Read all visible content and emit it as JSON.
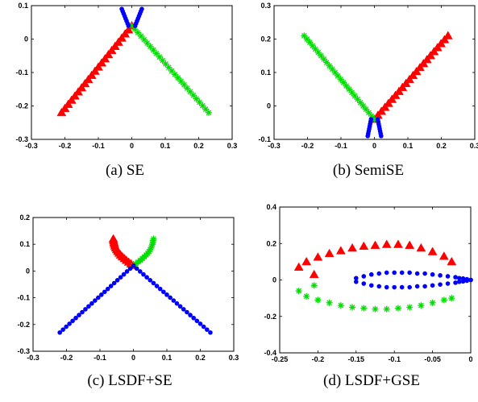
{
  "chart_data": [
    {
      "type": "scatter",
      "caption": "(a) SE",
      "xlim": [
        -0.3,
        0.3
      ],
      "ylim": [
        -0.3,
        0.1
      ],
      "xticks": [
        -0.3,
        -0.2,
        -0.1,
        0,
        0.1,
        0.2,
        0.3
      ],
      "xtick_labels": [
        "-0.3",
        "-0.2",
        "-0.1",
        "0",
        "0.1",
        "0.2",
        "0.3"
      ],
      "yticks": [
        -0.3,
        -0.2,
        -0.1,
        0,
        0.1
      ],
      "ytick_labels": [
        "-0.3",
        "-0.2",
        "-0.1",
        "0",
        "0.1"
      ],
      "series": [
        {
          "marker": "triangle",
          "color": "#ff0000",
          "x": [
            -0.21,
            0.0
          ],
          "y": [
            -0.22,
            0.04
          ],
          "n": 22
        },
        {
          "marker": "asterisk",
          "color": "#00dd00",
          "x": [
            0.0,
            0.23
          ],
          "y": [
            0.04,
            -0.22
          ],
          "n": 26
        },
        {
          "marker": "dot",
          "color": "#0000ff",
          "x": [
            -0.01,
            -0.03
          ],
          "y": [
            0.04,
            0.09
          ],
          "n": 8
        },
        {
          "marker": "dot",
          "color": "#0000ff",
          "x": [
            0.01,
            0.03
          ],
          "y": [
            0.04,
            0.09
          ],
          "n": 8
        }
      ]
    },
    {
      "type": "scatter",
      "caption": "(b) SemiSE",
      "xlim": [
        -0.3,
        0.3
      ],
      "ylim": [
        -0.1,
        0.3
      ],
      "xticks": [
        -0.3,
        -0.2,
        -0.1,
        0,
        0.1,
        0.2,
        0.3
      ],
      "xtick_labels": [
        "-0.3",
        "-0.2",
        "-0.1",
        "0",
        "0.1",
        "0.2",
        "0.3"
      ],
      "yticks": [
        -0.1,
        0,
        0.1,
        0.2,
        0.3
      ],
      "ytick_labels": [
        "-0.1",
        "0",
        "0.1",
        "0.2",
        "0.3"
      ],
      "series": [
        {
          "marker": "triangle",
          "color": "#ff0000",
          "x": [
            0.0,
            0.22
          ],
          "y": [
            -0.04,
            0.21
          ],
          "n": 22
        },
        {
          "marker": "asterisk",
          "color": "#00dd00",
          "x": [
            -0.21,
            0.0
          ],
          "y": [
            0.21,
            -0.04
          ],
          "n": 26
        },
        {
          "marker": "dot",
          "color": "#0000ff",
          "x": [
            -0.01,
            -0.02
          ],
          "y": [
            -0.04,
            -0.09
          ],
          "n": 8
        },
        {
          "marker": "dot",
          "color": "#0000ff",
          "x": [
            0.01,
            0.02
          ],
          "y": [
            -0.04,
            -0.09
          ],
          "n": 8
        }
      ]
    },
    {
      "type": "scatter",
      "caption": "(c) LSDF+SE",
      "xlim": [
        -0.3,
        0.3
      ],
      "ylim": [
        -0.3,
        0.2
      ],
      "xticks": [
        -0.3,
        -0.2,
        -0.1,
        0,
        0.1,
        0.2,
        0.3
      ],
      "xtick_labels": [
        "-0.3",
        "-0.2",
        "-0.1",
        "0",
        "0.1",
        "0.2",
        "0.3"
      ],
      "yticks": [
        -0.3,
        -0.2,
        -0.1,
        0,
        0.1,
        0.2
      ],
      "ytick_labels": [
        "-0.3",
        "-0.2",
        "-0.1",
        "0",
        "0.1",
        "0.2"
      ],
      "series": [
        {
          "marker": "triangle",
          "color": "#ff0000",
          "x": [
            -0.06,
            0.0
          ],
          "y": [
            0.12,
            0.02
          ],
          "n": 16,
          "curve": "left"
        },
        {
          "marker": "asterisk",
          "color": "#00dd00",
          "x": [
            0.0,
            0.06
          ],
          "y": [
            0.02,
            0.12
          ],
          "n": 16,
          "curve": "right"
        },
        {
          "marker": "dot",
          "color": "#0000ff",
          "x": [
            -0.22,
            0.0
          ],
          "y": [
            -0.23,
            0.02
          ],
          "n": 24
        },
        {
          "marker": "dot",
          "color": "#0000ff",
          "x": [
            0.0,
            0.23
          ],
          "y": [
            0.02,
            -0.23
          ],
          "n": 24
        }
      ]
    },
    {
      "type": "scatter",
      "caption": "(d) LSDF+GSE",
      "xlim": [
        -0.25,
        0
      ],
      "ylim": [
        -0.4,
        0.4
      ],
      "xticks": [
        -0.25,
        -0.2,
        -0.15,
        -0.1,
        -0.05,
        0
      ],
      "xtick_labels": [
        "-0.25",
        "-0.2",
        "-0.15",
        "-0.1",
        "-0.05",
        "0"
      ],
      "yticks": [
        -0.4,
        -0.2,
        0,
        0.2,
        0.4
      ],
      "ytick_labels": [
        "-0.4",
        "-0.2",
        "0",
        "0.2",
        "0.4"
      ],
      "series": [
        {
          "marker": "triangle",
          "color": "#ff0000",
          "x": [
            -0.225,
            -0.215,
            -0.2,
            -0.185,
            -0.17,
            -0.155,
            -0.14,
            -0.125,
            -0.11,
            -0.095,
            -0.08,
            -0.065,
            -0.05,
            -0.035,
            -0.025
          ],
          "y": [
            0.07,
            0.1,
            0.125,
            0.145,
            0.16,
            0.175,
            0.185,
            0.19,
            0.195,
            0.195,
            0.19,
            0.175,
            0.155,
            0.13,
            0.1
          ]
        },
        {
          "marker": "triangle",
          "color": "#ff0000",
          "x": [
            -0.205
          ],
          "y": [
            0.03
          ]
        },
        {
          "marker": "asterisk",
          "color": "#00dd00",
          "x": [
            -0.225,
            -0.215,
            -0.2,
            -0.185,
            -0.17,
            -0.155,
            -0.14,
            -0.125,
            -0.11,
            -0.095,
            -0.08,
            -0.065,
            -0.05,
            -0.035,
            -0.025
          ],
          "y": [
            -0.06,
            -0.09,
            -0.11,
            -0.125,
            -0.14,
            -0.15,
            -0.155,
            -0.16,
            -0.16,
            -0.155,
            -0.15,
            -0.14,
            -0.125,
            -0.11,
            -0.1
          ]
        },
        {
          "marker": "asterisk",
          "color": "#00dd00",
          "x": [
            -0.205
          ],
          "y": [
            -0.03
          ]
        },
        {
          "marker": "dot",
          "color": "#0000ff",
          "x": [
            -0.15,
            -0.14,
            -0.13,
            -0.12,
            -0.11,
            -0.1,
            -0.09,
            -0.08,
            -0.07,
            -0.06,
            -0.05,
            -0.04,
            -0.03,
            -0.02,
            -0.015,
            -0.01,
            -0.005,
            0
          ],
          "y": [
            0.01,
            0.02,
            0.03,
            0.035,
            0.04,
            0.04,
            0.04,
            0.04,
            0.035,
            0.035,
            0.03,
            0.025,
            0.02,
            0.015,
            0.01,
            0.008,
            0.004,
            0
          ]
        },
        {
          "marker": "dot",
          "color": "#0000ff",
          "x": [
            -0.15,
            -0.14,
            -0.13,
            -0.12,
            -0.11,
            -0.1,
            -0.09,
            -0.08,
            -0.07,
            -0.06,
            -0.05,
            -0.04,
            -0.03,
            -0.02,
            -0.015,
            -0.01,
            -0.005,
            0
          ],
          "y": [
            -0.01,
            -0.02,
            -0.03,
            -0.035,
            -0.04,
            -0.04,
            -0.04,
            -0.04,
            -0.035,
            -0.035,
            -0.03,
            -0.025,
            -0.02,
            -0.015,
            -0.01,
            -0.008,
            -0.004,
            0
          ]
        }
      ]
    }
  ]
}
